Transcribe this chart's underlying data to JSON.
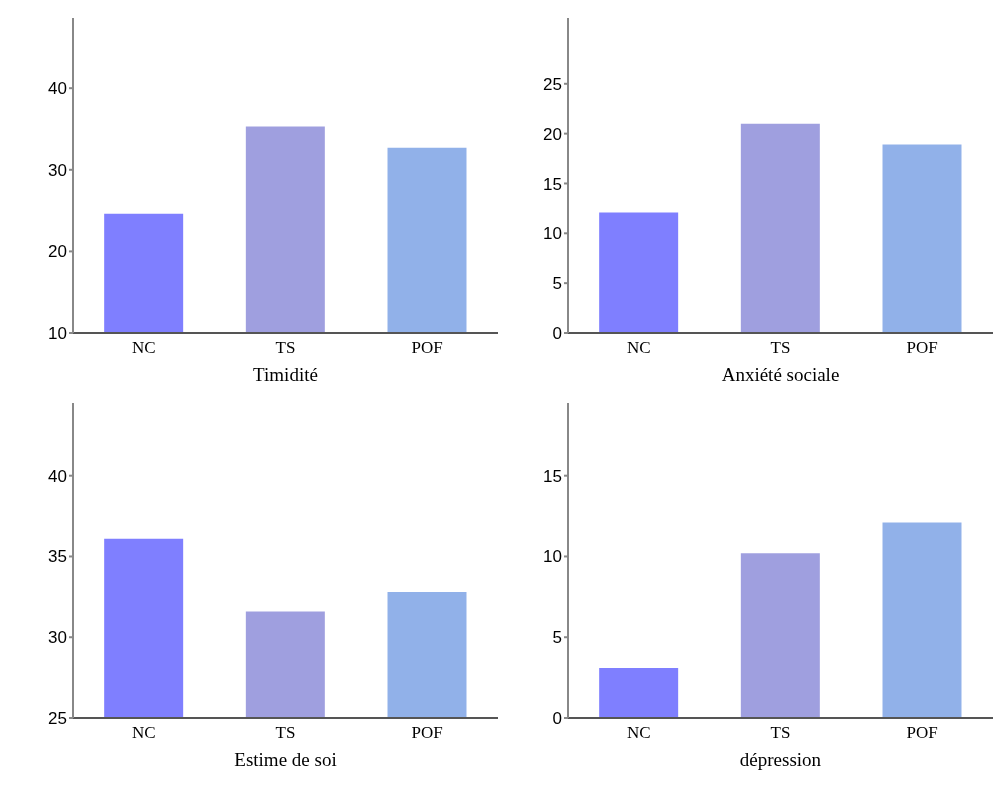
{
  "chart_data": [
    {
      "type": "bar",
      "xlabel": "Timidité",
      "categories": [
        "NC",
        "TS",
        "POF"
      ],
      "values": [
        24.6,
        35.3,
        32.7
      ],
      "colors": [
        "#7f7fff",
        "#9f9fdf",
        "#91b1e9"
      ],
      "ylim": [
        10,
        48.6
      ],
      "yticks": [
        10,
        20,
        30,
        40
      ]
    },
    {
      "type": "bar",
      "xlabel": "Anxiété sociale",
      "categories": [
        "NC",
        "TS",
        "POF"
      ],
      "values": [
        12.1,
        21.0,
        18.9
      ],
      "colors": [
        "#7f7fff",
        "#9f9fdf",
        "#91b1e9"
      ],
      "ylim": [
        0,
        31.6
      ],
      "yticks": [
        0,
        5,
        10,
        15,
        20,
        25
      ]
    },
    {
      "type": "bar",
      "xlabel": "Estime de soi",
      "categories": [
        "NC",
        "TS",
        "POF"
      ],
      "values": [
        36.1,
        31.6,
        32.8
      ],
      "colors": [
        "#7f7fff",
        "#9f9fdf",
        "#91b1e9"
      ],
      "ylim": [
        25,
        44.5
      ],
      "yticks": [
        25,
        30,
        35,
        40
      ]
    },
    {
      "type": "bar",
      "xlabel": "dépression",
      "categories": [
        "NC",
        "TS",
        "POF"
      ],
      "values": [
        3.1,
        10.2,
        12.1
      ],
      "colors": [
        "#7f7fff",
        "#9f9fdf",
        "#91b1e9"
      ],
      "ylim": [
        0,
        19.5
      ],
      "yticks": [
        0,
        5,
        10,
        15
      ]
    }
  ]
}
